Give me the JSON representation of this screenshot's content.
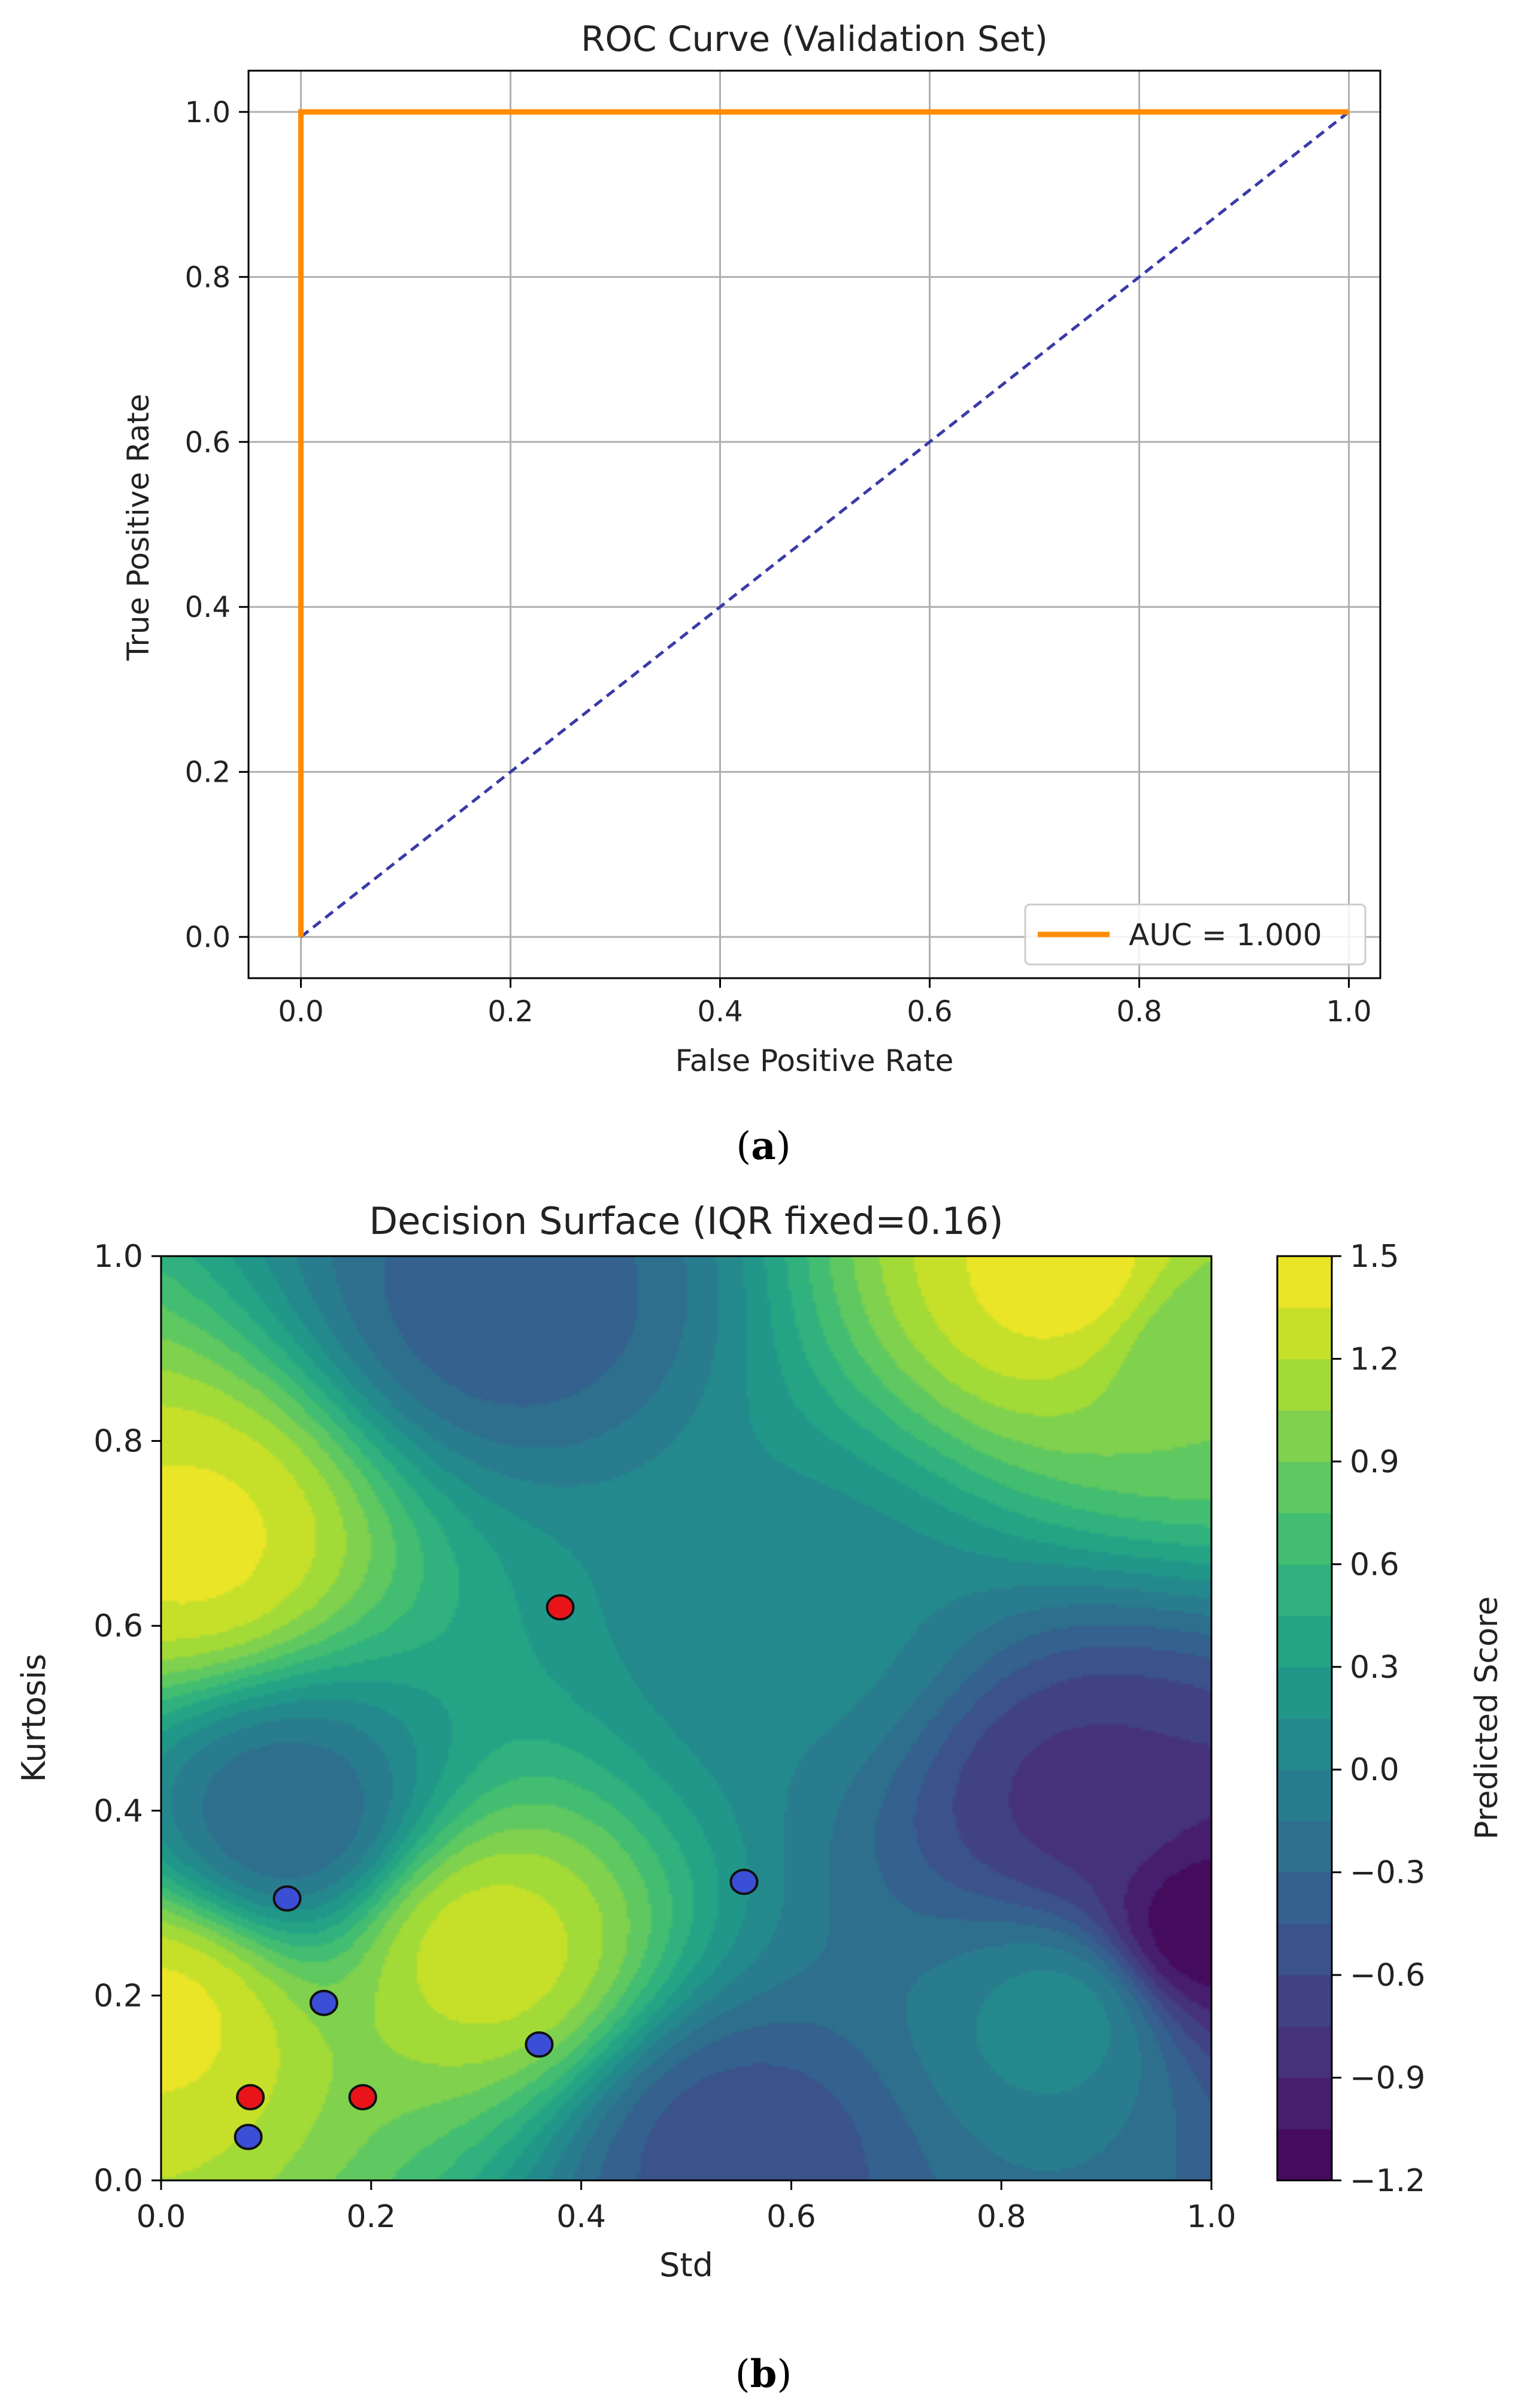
{
  "panels": [
    {
      "label_open": "(",
      "label_letter": "a",
      "label_close": ")"
    },
    {
      "label_open": "(",
      "label_letter": "b",
      "label_close": ")"
    }
  ],
  "chart_data": [
    {
      "type": "line",
      "title": "ROC Curve (Validation Set)",
      "xlabel": "False Positive Rate",
      "ylabel": "True Positive Rate",
      "xlim": [
        -0.05,
        1.03
      ],
      "ylim": [
        -0.05,
        1.05
      ],
      "xticks": [
        0.0,
        0.2,
        0.4,
        0.6,
        0.8,
        1.0
      ],
      "xtick_labels": [
        "0.0",
        "0.2",
        "0.4",
        "0.6",
        "0.8",
        "1.0"
      ],
      "yticks": [
        0.0,
        0.2,
        0.4,
        0.6,
        0.8,
        1.0
      ],
      "ytick_labels": [
        "0.0",
        "0.2",
        "0.4",
        "0.6",
        "0.8",
        "1.0"
      ],
      "grid": true,
      "legend_position": "bottom-right",
      "series": [
        {
          "name": "AUC = 1.000",
          "color": "#ff8c00",
          "x": [
            0.0,
            0.0,
            1.0
          ],
          "y": [
            0.0,
            1.0,
            1.0
          ],
          "style": "solid"
        },
        {
          "color": "#3a3aa8",
          "x": [
            0.0,
            1.0
          ],
          "y": [
            0.0,
            1.0
          ],
          "style": "dashed"
        }
      ]
    },
    {
      "type": "heatmap",
      "title": "Decision Surface (IQR fixed=0.16)",
      "xlabel": "Std",
      "ylabel": "Kurtosis",
      "xlim": [
        0.0,
        1.0
      ],
      "ylim": [
        0.0,
        1.0
      ],
      "xticks": [
        0.0,
        0.2,
        0.4,
        0.6,
        0.8,
        1.0
      ],
      "xtick_labels": [
        "0.0",
        "0.2",
        "0.4",
        "0.6",
        "0.8",
        "1.0"
      ],
      "yticks": [
        0.0,
        0.2,
        0.4,
        0.6,
        0.8,
        1.0
      ],
      "ytick_labels": [
        "0.0",
        "0.2",
        "0.4",
        "0.6",
        "0.8",
        "1.0"
      ],
      "colorbar": {
        "label": "Predicted Score",
        "range": [
          -1.2,
          1.5
        ],
        "ticks": [
          1.5,
          1.2,
          0.9,
          0.6,
          0.3,
          0.0,
          -0.3,
          -0.6,
          -0.9,
          -1.2
        ],
        "tick_labels": [
          "1.5",
          "1.2",
          "0.9",
          "0.6",
          "0.3",
          "0.0",
          "−0.3",
          "−0.6",
          "−0.9",
          "−1.2"
        ],
        "colormap": "viridis",
        "levels": 18
      },
      "surface_peaks": [
        {
          "x": 0.03,
          "y": 0.69,
          "value": 1.4
        },
        {
          "x": 0.0,
          "y": 0.18,
          "value": 1.4
        },
        {
          "x": 0.31,
          "y": 0.25,
          "value": 1.3
        },
        {
          "x": 0.87,
          "y": 0.98,
          "value": 1.45
        },
        {
          "x": 0.99,
          "y": 0.9,
          "value": 0.9
        },
        {
          "x": 0.12,
          "y": 0.39,
          "value": -0.3
        },
        {
          "x": 0.33,
          "y": 0.95,
          "value": -0.4
        },
        {
          "x": 0.88,
          "y": 0.41,
          "value": -0.8
        },
        {
          "x": 0.99,
          "y": 0.27,
          "value": -1.2
        },
        {
          "x": 0.86,
          "y": 0.18,
          "value": 0.1
        },
        {
          "x": 0.55,
          "y": 0.03,
          "value": -0.55
        },
        {
          "x": 0.6,
          "y": 0.6,
          "value": 0.05
        }
      ],
      "series": [
        {
          "color": "#e8141a",
          "points": [
            {
              "x": 0.38,
              "y": 0.62
            },
            {
              "x": 0.085,
              "y": 0.09
            },
            {
              "x": 0.192,
              "y": 0.09
            }
          ]
        },
        {
          "color": "#3a4fd6",
          "points": [
            {
              "x": 0.12,
              "y": 0.305
            },
            {
              "x": 0.155,
              "y": 0.192
            },
            {
              "x": 0.555,
              "y": 0.323
            },
            {
              "x": 0.36,
              "y": 0.147
            },
            {
              "x": 0.083,
              "y": 0.047
            }
          ]
        }
      ]
    }
  ]
}
